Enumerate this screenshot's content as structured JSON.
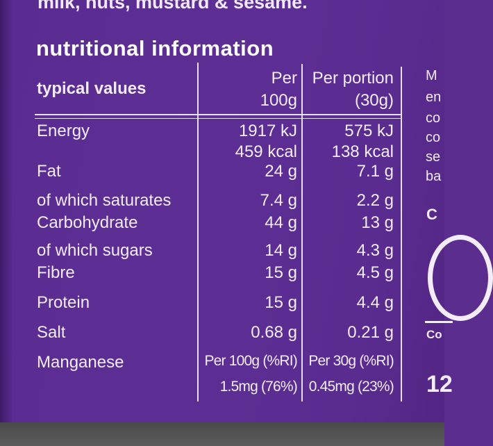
{
  "allergens_text": "milk, nuts, mustard & sesame.",
  "table": {
    "title": "nutritional information",
    "header": {
      "label": "typical values",
      "col1_line1": "Per",
      "col1_line2": "100g",
      "col2_line1": "Per portion",
      "col2_line2": "(30g)"
    },
    "rows": [
      {
        "label": "Energy",
        "per100": "1917 kJ",
        "perPortion": "575 kJ"
      },
      {
        "label": "",
        "per100": "459 kcal",
        "perPortion": "138 kcal"
      },
      {
        "label": "Fat",
        "per100": "24 g",
        "perPortion": "7.1 g"
      },
      {
        "label": "of which saturates",
        "per100": "7.4 g",
        "perPortion": "2.2 g"
      },
      {
        "label": "Carbohydrate",
        "per100": "44 g",
        "perPortion": "13 g"
      },
      {
        "label": "of which sugars",
        "per100": "14 g",
        "perPortion": "4.3 g"
      },
      {
        "label": "Fibre",
        "per100": "15 g",
        "perPortion": "4.5 g"
      },
      {
        "label": "Protein",
        "per100": "15 g",
        "perPortion": "4.4 g"
      },
      {
        "label": "Salt",
        "per100": "0.68 g",
        "perPortion": "0.21 g"
      },
      {
        "label": "Manganese",
        "per100": "Per 100g (%RI)",
        "perPortion": "Per 30g (%RI)"
      },
      {
        "label": "",
        "per100": "1.5mg (76%)",
        "perPortion": "0.45mg (23%)"
      }
    ]
  },
  "side": {
    "lines": [
      "M",
      "en",
      "co",
      "co",
      "se",
      "ba"
    ],
    "heading": "C",
    "label": "Co",
    "number": "12"
  }
}
